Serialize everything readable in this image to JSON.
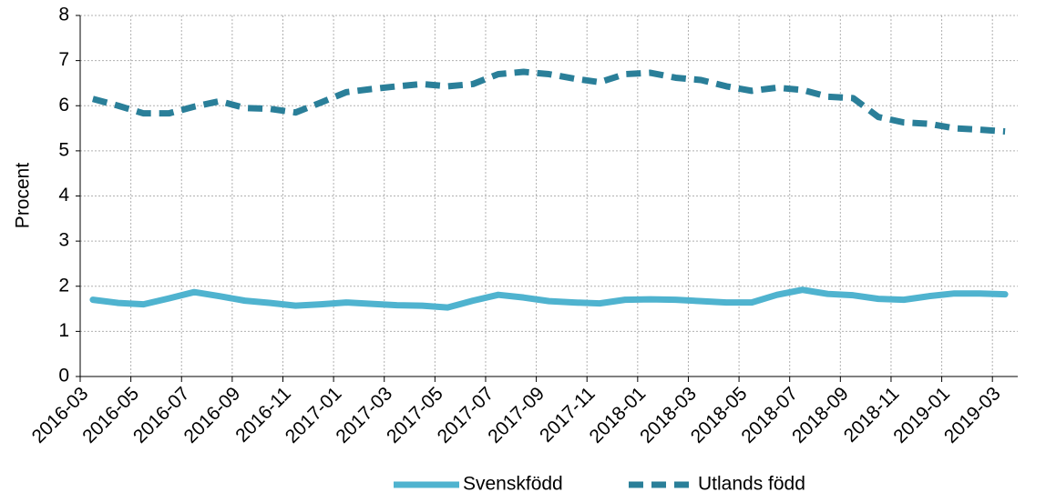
{
  "chart_data": {
    "type": "line",
    "ylabel": "Procent",
    "categories": [
      "2016-03",
      null,
      "2016-05",
      null,
      "2016-07",
      null,
      "2016-09",
      null,
      "2016-11",
      null,
      "2017-01",
      null,
      "2017-03",
      null,
      "2017-05",
      null,
      "2017-07",
      null,
      "2017-09",
      null,
      "2017-11",
      null,
      "2018-01",
      null,
      "2018-03",
      null,
      "2018-05",
      null,
      "2018-07",
      null,
      "2018-09",
      null,
      "2018-11",
      null,
      "2019-01",
      null,
      "2019-03"
    ],
    "series": [
      {
        "name": "Svenskfödd",
        "color": "#4fb3cf",
        "dashed": false,
        "values": [
          1.7,
          1.63,
          1.6,
          1.73,
          1.87,
          1.78,
          1.68,
          1.63,
          1.57,
          1.6,
          1.64,
          1.61,
          1.58,
          1.57,
          1.53,
          1.68,
          1.81,
          1.75,
          1.67,
          1.64,
          1.62,
          1.7,
          1.71,
          1.7,
          1.67,
          1.64,
          1.64,
          1.81,
          1.92,
          1.83,
          1.8,
          1.72,
          1.7,
          1.78,
          1.84,
          1.84,
          1.82
        ]
      },
      {
        "name": "Utlands född",
        "color": "#2a7f99",
        "dashed": true,
        "values": [
          6.15,
          6.0,
          5.83,
          5.83,
          5.98,
          6.1,
          5.95,
          5.93,
          5.85,
          6.07,
          6.3,
          6.37,
          6.43,
          6.48,
          6.43,
          6.48,
          6.7,
          6.75,
          6.7,
          6.6,
          6.52,
          6.7,
          6.73,
          6.62,
          6.57,
          6.43,
          6.33,
          6.4,
          6.35,
          6.2,
          6.17,
          5.75,
          5.63,
          5.6,
          5.5,
          5.47,
          5.43
        ]
      }
    ],
    "ylim": [
      0,
      8
    ],
    "yticks": [
      0,
      1,
      2,
      3,
      4,
      5,
      6,
      7,
      8
    ],
    "grid": true,
    "legend": "bottom"
  }
}
